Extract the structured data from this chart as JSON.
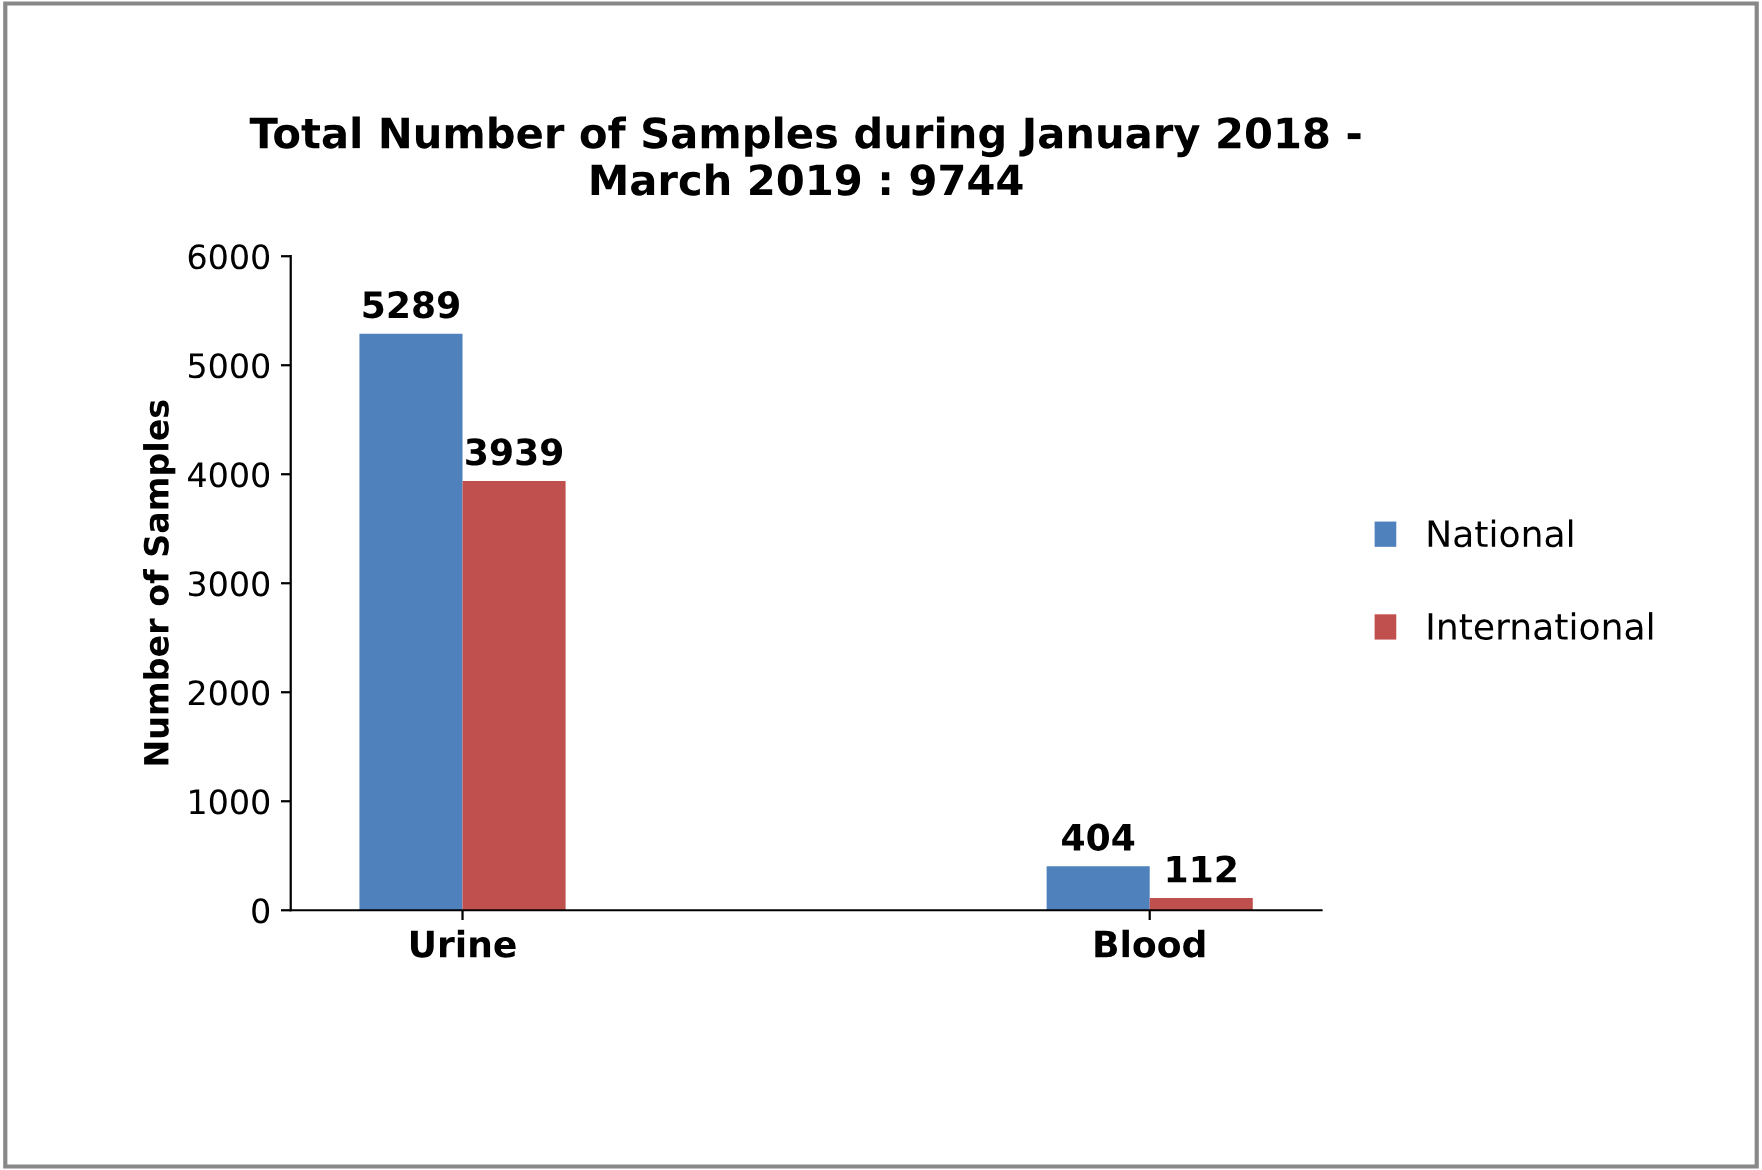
{
  "chart_data": {
    "type": "bar",
    "title": "Total Number of Samples during January 2018 -\nMarch 2019 : 9744",
    "ylabel": "Number of Samples",
    "categories": [
      "Urine",
      "Blood"
    ],
    "series": [
      {
        "name": "National",
        "color": "#4f81bd",
        "values": [
          5289,
          404
        ]
      },
      {
        "name": "International",
        "color": "#c0504d",
        "values": [
          3939,
          112
        ]
      }
    ],
    "ylim": [
      0,
      6000
    ],
    "yticks": [
      0,
      1000,
      2000,
      3000,
      4000,
      5000,
      6000
    ],
    "grid": false,
    "legend": "right",
    "data_labels": true
  }
}
